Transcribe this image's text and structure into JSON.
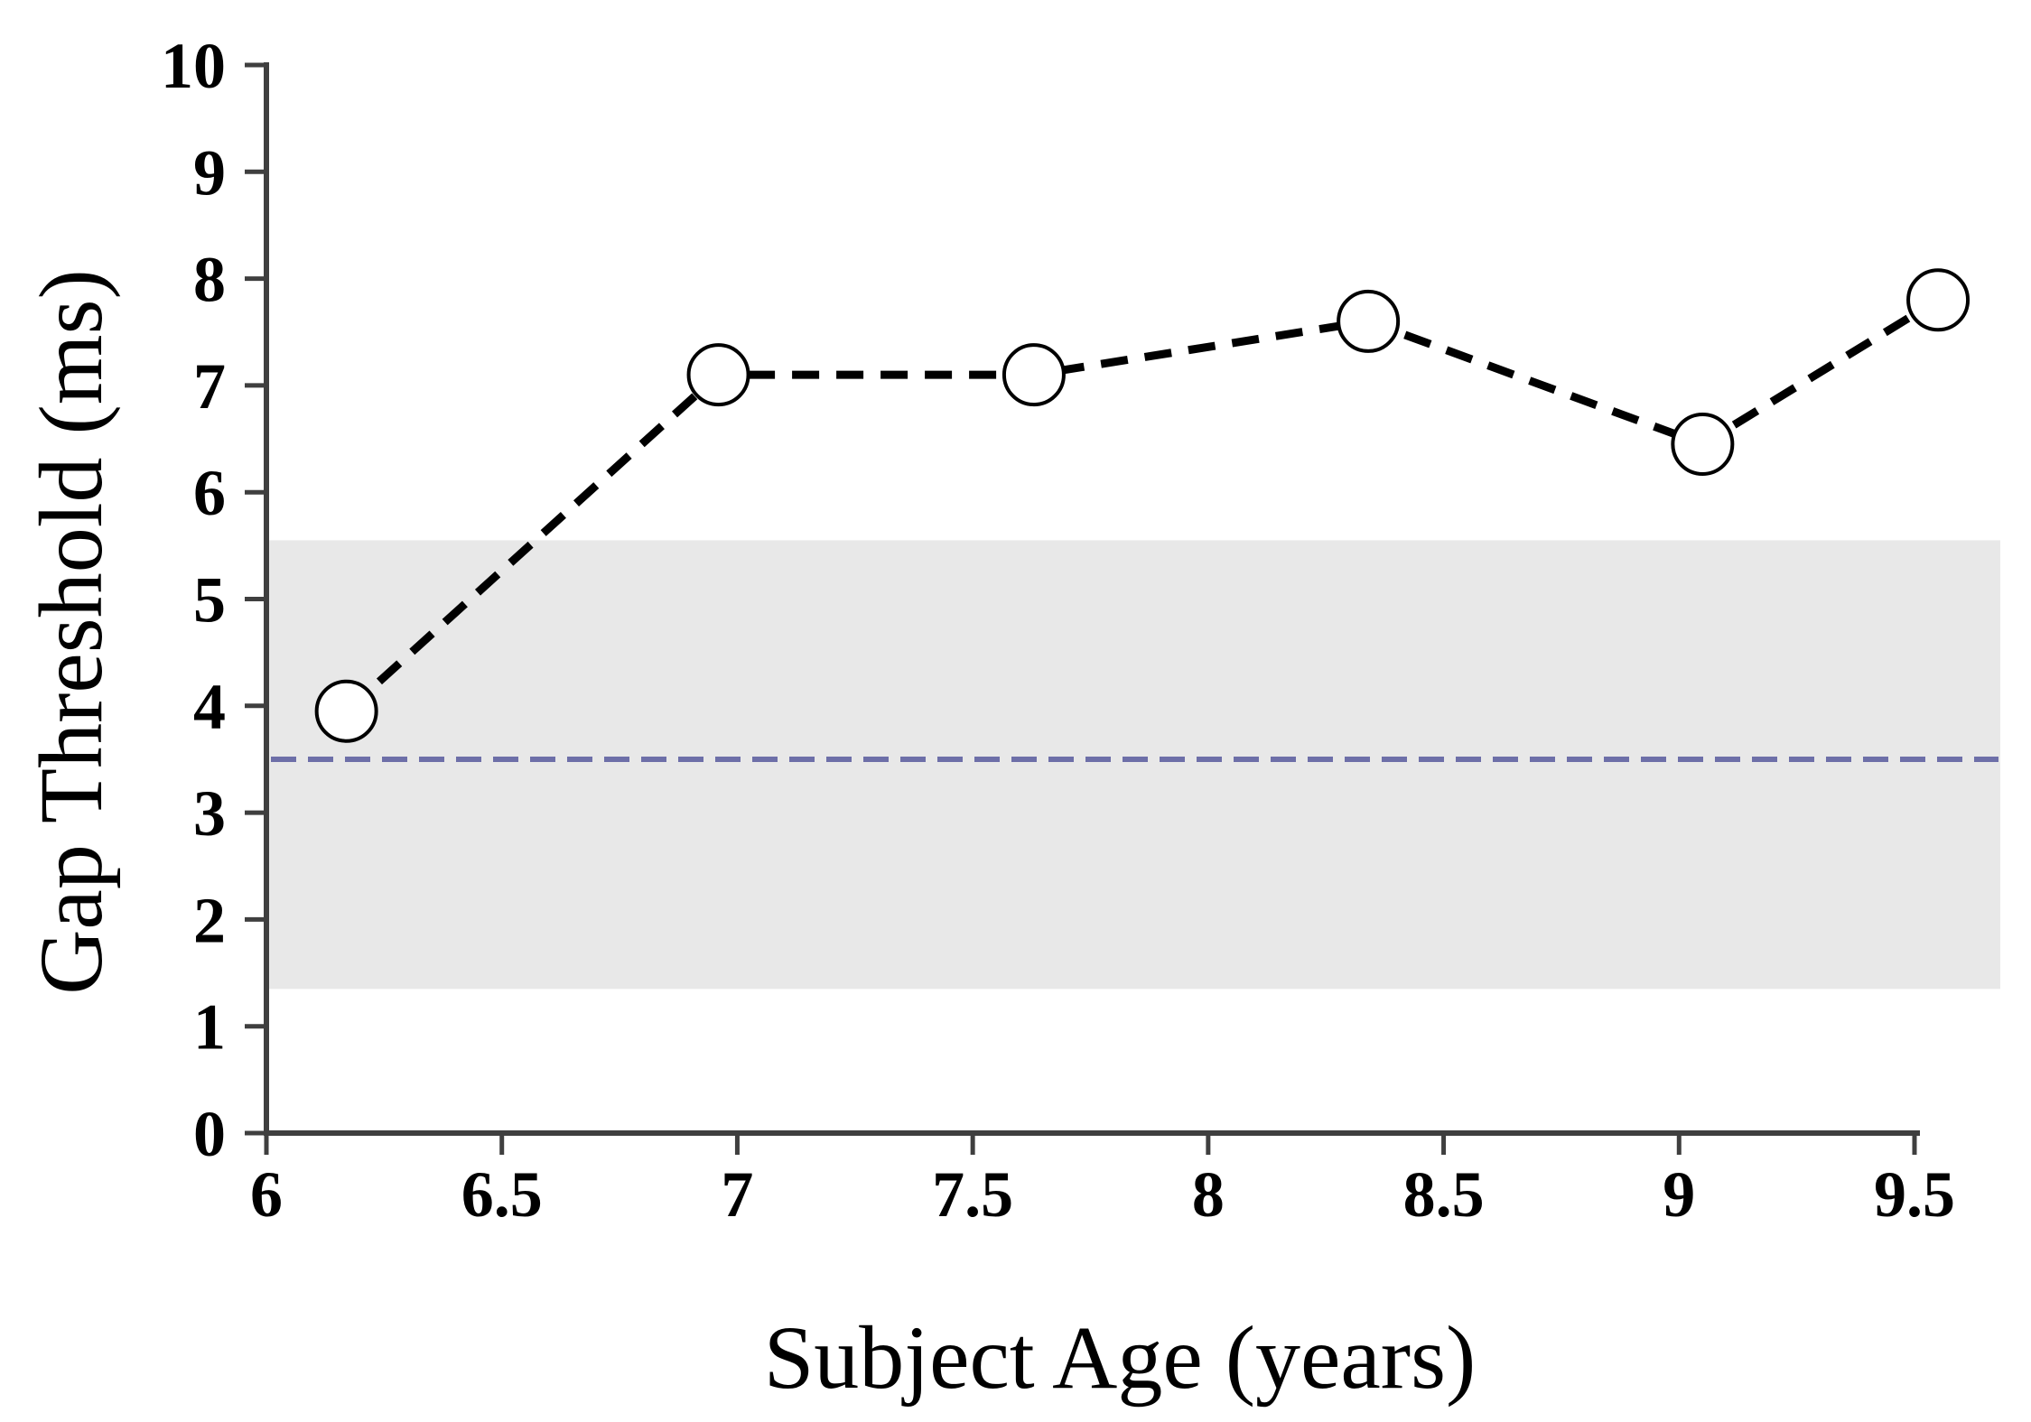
{
  "chart_data": {
    "type": "line",
    "title": "",
    "xlabel": "Subject Age (years)",
    "ylabel": "Gap Threshold (ms)",
    "xlim": [
      6,
      9.68
    ],
    "ylim": [
      0,
      10
    ],
    "grid": false,
    "legend": false,
    "x_ticks": [
      6,
      6.5,
      7,
      7.5,
      8,
      8.5,
      9,
      9.5
    ],
    "x_tick_labels": [
      "6",
      "6.5",
      "7",
      "7.5",
      "8",
      "8.5",
      "9",
      "9.5"
    ],
    "y_ticks": [
      0,
      1,
      2,
      3,
      4,
      5,
      6,
      7,
      8,
      9,
      10
    ],
    "y_tick_labels": [
      "0",
      "1",
      "2",
      "3",
      "4",
      "5",
      "6",
      "7",
      "8",
      "9",
      "10"
    ],
    "series": [
      {
        "marker": "open-circle",
        "line_style": "dashed",
        "color": "#000000",
        "points": [
          [
            6.17,
            3.95
          ],
          [
            6.96,
            7.1
          ],
          [
            7.63,
            7.1
          ],
          [
            8.34,
            7.6
          ],
          [
            9.05,
            6.45
          ],
          [
            9.55,
            7.8
          ]
        ]
      }
    ],
    "reference_band": {
      "y_min": 1.35,
      "y_max": 5.55,
      "color": "#e8e8e8"
    },
    "reference_line": {
      "y": 3.5,
      "style": "dashed",
      "color": "#6d6fa8"
    },
    "axis_color": "#3f3f3f"
  }
}
